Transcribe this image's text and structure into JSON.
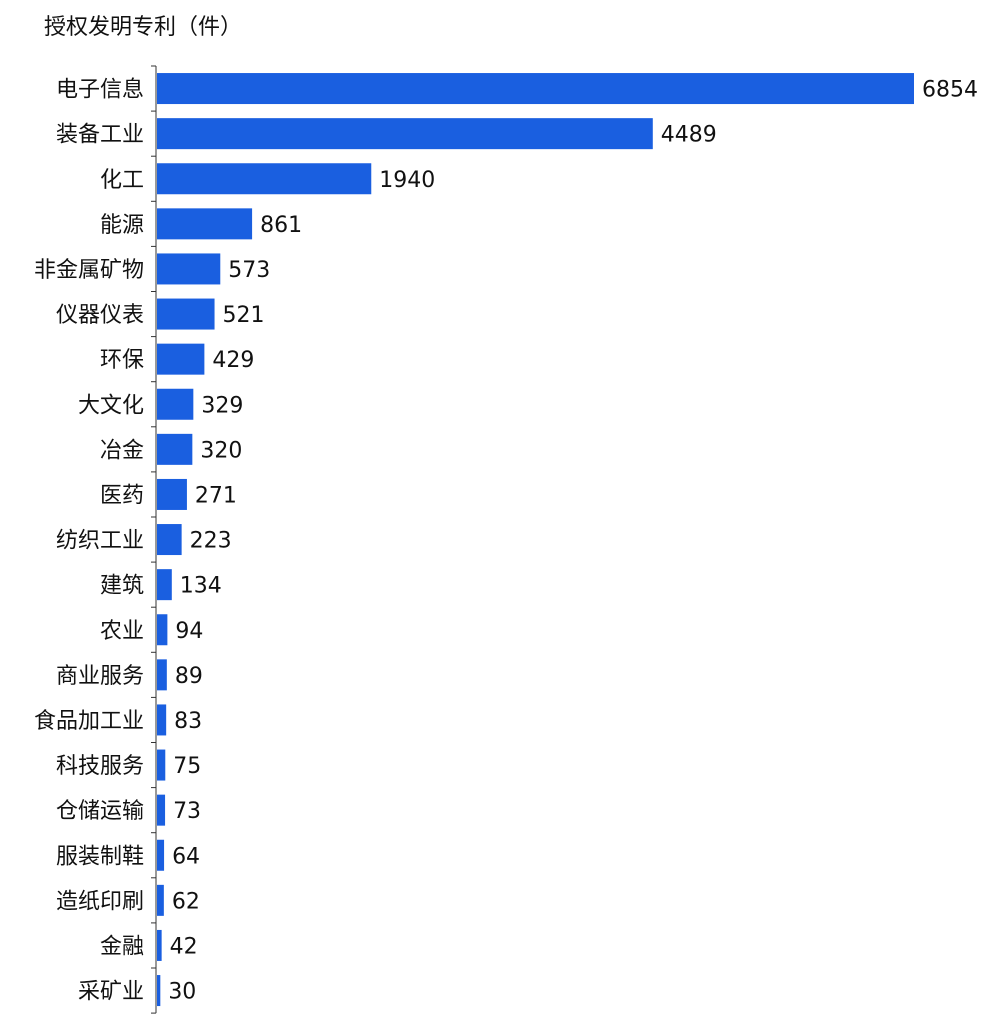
{
  "chart_data": {
    "type": "bar",
    "orientation": "horizontal",
    "title": "授权发明专利（件）",
    "categories": [
      "电子信息",
      "装备工业",
      "化工",
      "能源",
      "非金属矿物",
      "仪器仪表",
      "环保",
      "大文化",
      "冶金",
      "医药",
      "纺织工业",
      "建筑",
      "农业",
      "商业服务",
      "食品加工业",
      "科技服务",
      "仓储运输",
      "服装制鞋",
      "造纸印刷",
      "金融",
      "采矿业"
    ],
    "values": [
      6854,
      4489,
      1940,
      861,
      573,
      521,
      429,
      329,
      320,
      271,
      223,
      134,
      94,
      89,
      83,
      75,
      73,
      64,
      62,
      42,
      30
    ],
    "bar_color": "#1a5fe0",
    "grid": false,
    "legend": "none"
  }
}
